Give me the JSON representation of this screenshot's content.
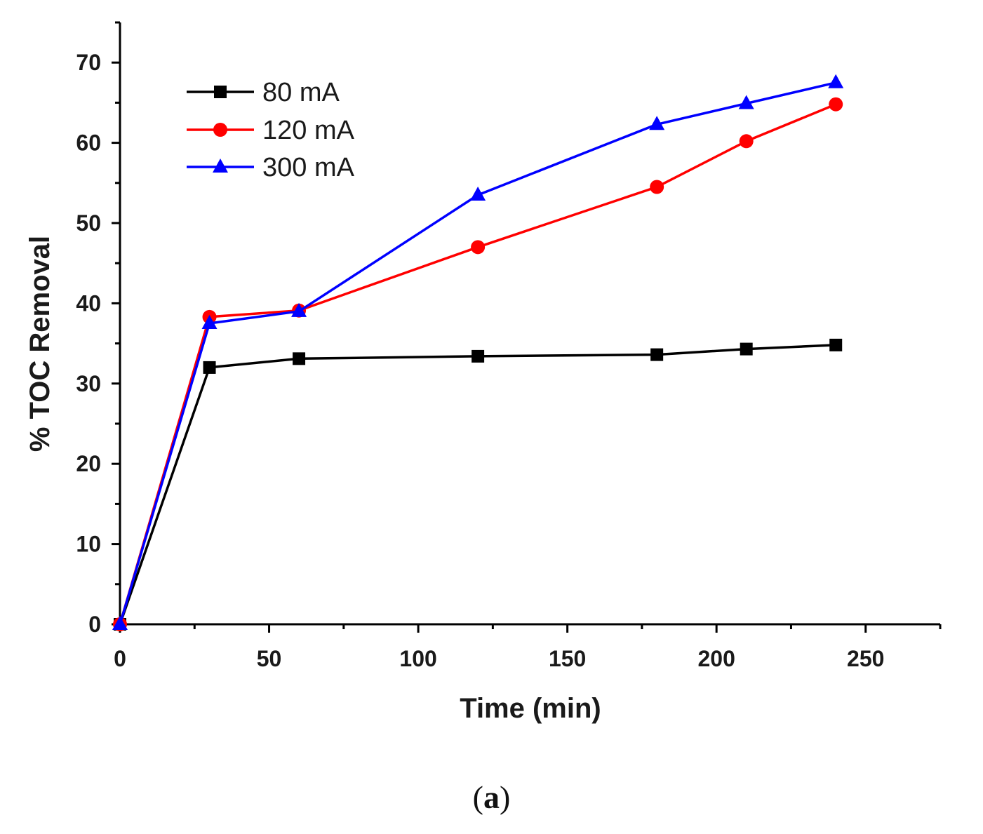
{
  "chart_data": {
    "type": "line",
    "title": "",
    "xlabel": "Time (min)",
    "ylabel": "% TOC Removal",
    "xlim": [
      0,
      275
    ],
    "ylim": [
      0,
      75
    ],
    "xticks": [
      0,
      50,
      100,
      150,
      200,
      250
    ],
    "yticks": [
      0,
      10,
      20,
      30,
      40,
      50,
      60,
      70
    ],
    "grid": false,
    "legend_position": "top-left",
    "series": [
      {
        "name": "80 mA",
        "color": "#000000",
        "marker": "square",
        "x": [
          0,
          30,
          60,
          120,
          180,
          210,
          240
        ],
        "y": [
          0,
          32.0,
          33.1,
          33.4,
          33.6,
          34.3,
          34.8
        ]
      },
      {
        "name": "120 mA",
        "color": "#ff0000",
        "marker": "circle",
        "x": [
          0,
          30,
          60,
          120,
          180,
          210,
          240
        ],
        "y": [
          0,
          38.3,
          39.1,
          47.0,
          54.5,
          60.2,
          64.8
        ]
      },
      {
        "name": "300 mA",
        "color": "#0000ff",
        "marker": "triangle",
        "x": [
          0,
          30,
          60,
          120,
          180,
          210,
          240
        ],
        "y": [
          0,
          37.5,
          39.0,
          53.5,
          62.3,
          64.9,
          67.5
        ]
      }
    ]
  },
  "caption": {
    "open": "(",
    "letter": "a",
    "close": ")"
  }
}
